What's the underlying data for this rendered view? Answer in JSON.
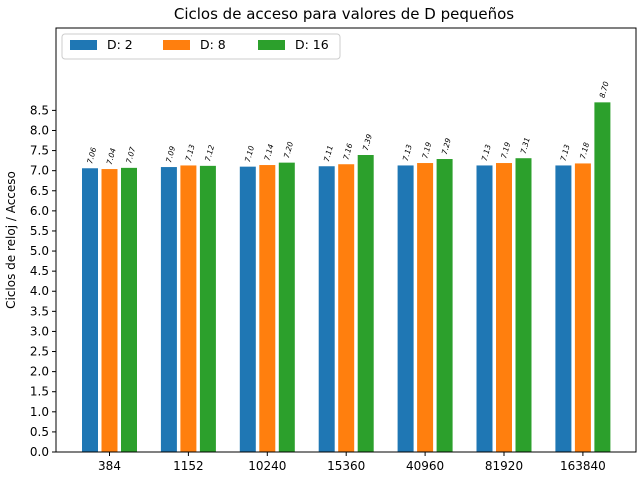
{
  "chart_data": {
    "type": "bar",
    "title": "Ciclos de acceso para valores de D pequeños",
    "xlabel": "",
    "ylabel": "Ciclos de reloj / Acceso",
    "categories": [
      "384",
      "1152",
      "10240",
      "15360",
      "40960",
      "81920",
      "163840"
    ],
    "y_ticks": [
      "0.0",
      "0.5",
      "1.0",
      "1.5",
      "2.0",
      "2.5",
      "3.0",
      "3.5",
      "4.0",
      "4.5",
      "5.0",
      "5.5",
      "6.0",
      "6.5",
      "7.0",
      "7.5",
      "8.0",
      "8.5"
    ],
    "ylim": [
      0,
      10.55
    ],
    "grid": false,
    "legend_position": "top-left",
    "series": [
      {
        "name": "D: 2",
        "color": "#1f77b4",
        "values": [
          7.06,
          7.09,
          7.1,
          7.11,
          7.13,
          7.13,
          7.13
        ],
        "labels": [
          "7.06",
          "7.09",
          "7.10",
          "7.11",
          "7.13",
          "7.13",
          "7.13"
        ]
      },
      {
        "name": "D: 8",
        "color": "#ff7f0e",
        "values": [
          7.04,
          7.13,
          7.14,
          7.16,
          7.19,
          7.19,
          7.18
        ],
        "labels": [
          "7.04",
          "7.13",
          "7.14",
          "7.16",
          "7.19",
          "7.19",
          "7.18"
        ]
      },
      {
        "name": "D: 16",
        "color": "#2ca02c",
        "values": [
          7.07,
          7.12,
          7.2,
          7.39,
          7.29,
          7.31,
          8.7
        ],
        "labels": [
          "7.07",
          "7.12",
          "7.20",
          "7.39",
          "7.29",
          "7.31",
          "8.70"
        ]
      }
    ]
  }
}
